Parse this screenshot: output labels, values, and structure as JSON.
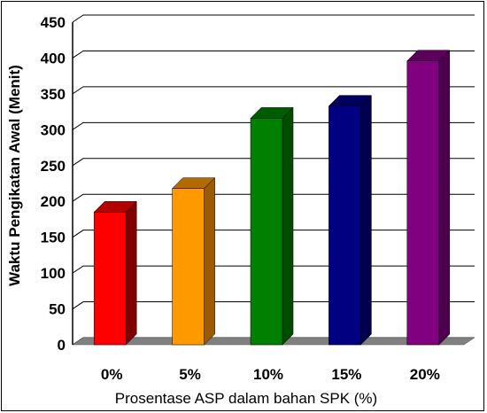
{
  "chart_data": {
    "type": "bar",
    "categories": [
      "0%",
      "5%",
      "10%",
      "15%",
      "20%"
    ],
    "values": [
      185,
      218,
      316,
      333,
      396
    ],
    "title": "",
    "xlabel": "Prosentase ASP dalam bahan SPK (%)",
    "ylabel": "Waktu Pengikatan Awal (Menit)",
    "ylim": [
      0,
      450
    ],
    "yticks": [
      0,
      50,
      100,
      150,
      200,
      250,
      300,
      350,
      400,
      450
    ],
    "grid": true,
    "three_d": true,
    "colors": [
      "#ff0000",
      "#ff9900",
      "#008000",
      "#000080",
      "#800080"
    ],
    "side_colors": [
      "#800000",
      "#995c00",
      "#004d00",
      "#00004d",
      "#4d004d"
    ],
    "top_colors": [
      "#b30000",
      "#b36b00",
      "#005c00",
      "#00005c",
      "#5c005c"
    ]
  }
}
